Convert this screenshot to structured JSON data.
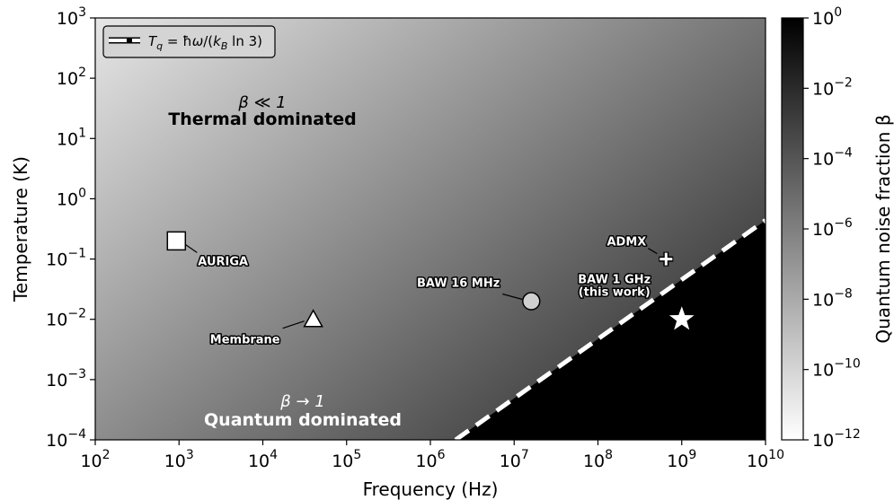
{
  "chart_data": {
    "type": "heatmap",
    "xlabel": "Frequency (Hz)",
    "ylabel": "Temperature (K)",
    "x_scale": "log",
    "y_scale": "log",
    "xlim": [
      100,
      10000000000
    ],
    "ylim": [
      0.0001,
      1000
    ],
    "x_ticks": [
      {
        "value": 100,
        "base": "10",
        "exp": "2"
      },
      {
        "value": 1000,
        "base": "10",
        "exp": "3"
      },
      {
        "value": 10000,
        "base": "10",
        "exp": "4"
      },
      {
        "value": 100000,
        "base": "10",
        "exp": "5"
      },
      {
        "value": 1000000,
        "base": "10",
        "exp": "6"
      },
      {
        "value": 10000000,
        "base": "10",
        "exp": "7"
      },
      {
        "value": 100000000,
        "base": "10",
        "exp": "8"
      },
      {
        "value": 1000000000,
        "base": "10",
        "exp": "9"
      },
      {
        "value": 10000000000,
        "base": "10",
        "exp": "10"
      }
    ],
    "y_ticks": [
      {
        "value": 0.0001,
        "base": "10",
        "exp": "−4"
      },
      {
        "value": 0.001,
        "base": "10",
        "exp": "−3"
      },
      {
        "value": 0.01,
        "base": "10",
        "exp": "−2"
      },
      {
        "value": 0.1,
        "base": "10",
        "exp": "−1"
      },
      {
        "value": 1,
        "base": "10",
        "exp": "0"
      },
      {
        "value": 10,
        "base": "10",
        "exp": "1"
      },
      {
        "value": 100,
        "base": "10",
        "exp": "2"
      },
      {
        "value": 1000,
        "base": "10",
        "exp": "3"
      }
    ],
    "colorbar": {
      "label": "Quantum noise fraction β",
      "scale": "log",
      "range": [
        1e-12,
        1
      ],
      "colormap": "gray_r",
      "ticks": [
        {
          "value": 1,
          "base": "10",
          "exp": "0"
        },
        {
          "value": 0.01,
          "base": "10",
          "exp": "−2"
        },
        {
          "value": 0.0001,
          "base": "10",
          "exp": "−4"
        },
        {
          "value": 1e-06,
          "base": "10",
          "exp": "−6"
        },
        {
          "value": 1e-08,
          "base": "10",
          "exp": "−8"
        },
        {
          "value": 1e-10,
          "base": "10",
          "exp": "−10"
        },
        {
          "value": 1e-12,
          "base": "10",
          "exp": "−12"
        }
      ]
    },
    "legend": {
      "position": "top-left",
      "entries": [
        {
          "label": "T_q = ħω/(k_B ln 3)",
          "style": "white dashed line"
        }
      ]
    },
    "line": {
      "name": "T_q = ħω/(k_B ln 3)",
      "style": "dashed",
      "color": "#ffffff",
      "x": [
        2000000,
        10000000000
      ],
      "y": [
        0.0001,
        0.44
      ]
    },
    "points": [
      {
        "label": "AURIGA",
        "x": 930,
        "y": 0.2,
        "marker": "square",
        "fill": "#ffffff"
      },
      {
        "label": "Membrane",
        "x": 40000,
        "y": 0.01,
        "marker": "triangle",
        "fill": "#ffffff"
      },
      {
        "label": "BAW 16 MHz",
        "x": 16000000,
        "y": 0.02,
        "marker": "circle",
        "fill": "#d0d0d0"
      },
      {
        "label": "ADMX",
        "x": 650000000,
        "y": 0.1,
        "marker": "plus",
        "fill": "#ffffff"
      },
      {
        "label": "BAW 1 GHz\n(this work)",
        "x": 1000000000,
        "y": 0.01,
        "marker": "star",
        "fill": "#ffffff"
      }
    ],
    "annotations": {
      "thermal": {
        "symbol": "β ≪ 1",
        "text": "Thermal dominated"
      },
      "quantum": {
        "symbol": "β → 1",
        "text": "Quantum dominated"
      }
    },
    "grid": false
  },
  "colors": {
    "line": "#ffffff",
    "axes": "#000000",
    "annotation_fill": "#ffffff",
    "annotation_outline": "#000000"
  }
}
